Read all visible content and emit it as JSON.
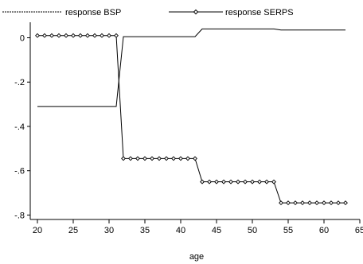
{
  "chart_data": {
    "type": "line",
    "title": "",
    "xlabel": "age",
    "ylabel": "",
    "xlim": [
      19,
      65
    ],
    "ylim": [
      -0.82,
      0.07
    ],
    "xticks": [
      20,
      25,
      30,
      35,
      40,
      45,
      50,
      55,
      60,
      65
    ],
    "yticks": [
      0,
      -0.2,
      -0.4,
      -0.6,
      -0.8
    ],
    "ytick_labels": [
      "0",
      "-.2",
      "-.4",
      "-.6",
      "-.8"
    ],
    "grid": false,
    "legend_position": "top",
    "colors": {
      "line": "#000000",
      "axis": "#000000"
    },
    "series": [
      {
        "name": "response BSP",
        "marker": "none",
        "x": [
          20,
          21,
          22,
          23,
          24,
          25,
          26,
          27,
          28,
          29,
          30,
          31,
          32,
          33,
          34,
          35,
          36,
          37,
          38,
          39,
          40,
          41,
          42,
          43,
          44,
          45,
          46,
          47,
          48,
          49,
          50,
          51,
          52,
          53,
          54,
          55,
          56,
          57,
          58,
          59,
          60,
          61,
          62,
          63
        ],
        "y": [
          -0.31,
          -0.31,
          -0.31,
          -0.31,
          -0.31,
          -0.31,
          -0.31,
          -0.31,
          -0.31,
          -0.31,
          -0.31,
          -0.31,
          0.005,
          0.005,
          0.005,
          0.005,
          0.005,
          0.005,
          0.005,
          0.005,
          0.005,
          0.005,
          0.005,
          0.04,
          0.04,
          0.04,
          0.04,
          0.04,
          0.04,
          0.04,
          0.04,
          0.04,
          0.04,
          0.04,
          0.035,
          0.035,
          0.035,
          0.035,
          0.035,
          0.035,
          0.035,
          0.035,
          0.035,
          0.035
        ]
      },
      {
        "name": "response SERPS",
        "marker": "diamond",
        "x": [
          20,
          21,
          22,
          23,
          24,
          25,
          26,
          27,
          28,
          29,
          30,
          31,
          32,
          33,
          34,
          35,
          36,
          37,
          38,
          39,
          40,
          41,
          42,
          43,
          44,
          45,
          46,
          47,
          48,
          49,
          50,
          51,
          52,
          53,
          54,
          55,
          56,
          57,
          58,
          59,
          60,
          61,
          62,
          63
        ],
        "y": [
          0.01,
          0.01,
          0.01,
          0.01,
          0.01,
          0.01,
          0.01,
          0.01,
          0.01,
          0.01,
          0.01,
          0.01,
          -0.545,
          -0.545,
          -0.545,
          -0.545,
          -0.545,
          -0.545,
          -0.545,
          -0.545,
          -0.545,
          -0.545,
          -0.545,
          -0.65,
          -0.65,
          -0.65,
          -0.65,
          -0.65,
          -0.65,
          -0.65,
          -0.65,
          -0.65,
          -0.65,
          -0.65,
          -0.745,
          -0.745,
          -0.745,
          -0.745,
          -0.745,
          -0.745,
          -0.745,
          -0.745,
          -0.745,
          -0.745
        ]
      }
    ]
  }
}
